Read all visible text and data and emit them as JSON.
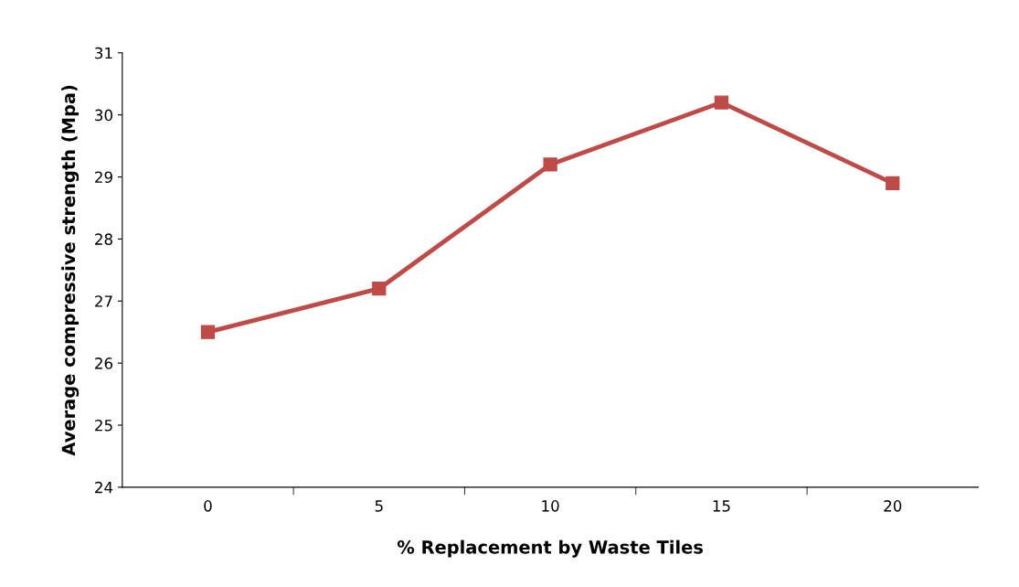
{
  "chart_data": {
    "type": "line",
    "xlabel": "% Replacement by Waste Tiles",
    "ylabel": "Average compressive strength (Mpa)",
    "categories": [
      "0",
      "5",
      "10",
      "15",
      "20"
    ],
    "series": [
      {
        "color": "#be4b48",
        "values": [
          26.5,
          27.2,
          29.2,
          30.2,
          28.9
        ]
      }
    ],
    "ylim": [
      24,
      31
    ],
    "yticks": [
      24,
      25,
      26,
      27,
      28,
      29,
      30,
      31
    ],
    "marker": "square",
    "line_style": "solid",
    "grid": false,
    "legend": false
  }
}
